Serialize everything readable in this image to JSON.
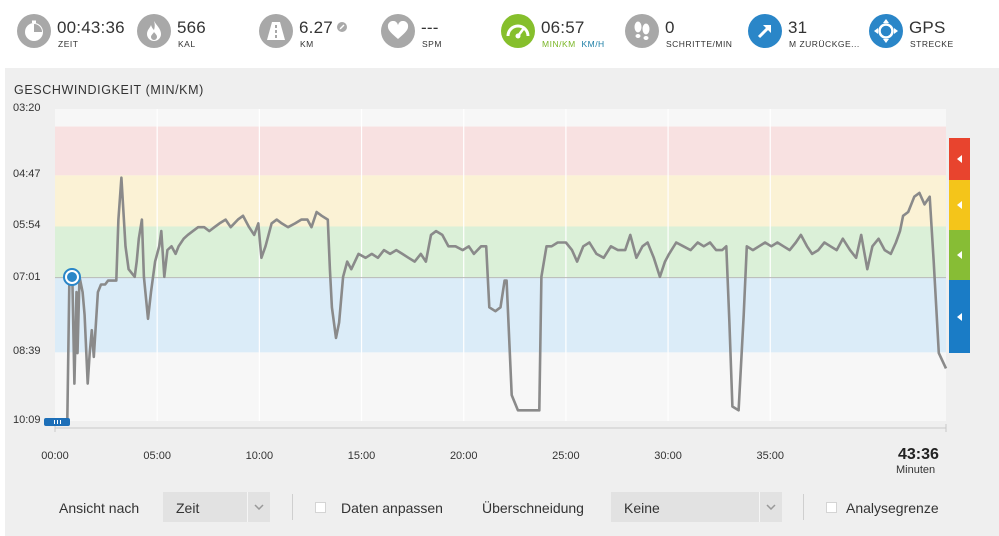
{
  "stats": [
    {
      "key": "time",
      "value": "00:43:36",
      "unit": "ZEIT",
      "icon": "stopwatch-icon",
      "color": "#a8a8a8"
    },
    {
      "key": "calories",
      "value": "566",
      "unit": "KAL",
      "icon": "flame-icon",
      "color": "#a8a8a8"
    },
    {
      "key": "distance",
      "value": "6.27",
      "unit": "KM",
      "icon": "road-icon",
      "color": "#a8a8a8"
    },
    {
      "key": "heart",
      "value": "---",
      "unit": "SPM",
      "icon": "heart-icon",
      "color": "#a8a8a8"
    },
    {
      "key": "pace",
      "value": "06:57",
      "unit_a": "MIN/KM",
      "unit_b": "KM/H",
      "icon": "speedometer-icon",
      "color": "#86bf2c"
    },
    {
      "key": "cadence",
      "value": "0",
      "unit": "SCHRITTE/MIN",
      "icon": "footsteps-icon",
      "color": "#a8a8a8"
    },
    {
      "key": "elevation",
      "value": "31",
      "unit": "M ZURÜCKGE...",
      "icon": "elevation-arrow-icon",
      "color": "#2a86c8"
    },
    {
      "key": "route",
      "value": "GPS",
      "unit": "STRECKE",
      "icon": "gps-compass-icon",
      "color": "#2a86c8"
    }
  ],
  "chart": {
    "title": "GESCHWINDIGKEIT  (MIN/KM)",
    "end_time": "43:36",
    "end_unit": "Minuten"
  },
  "chart_data": {
    "type": "line",
    "title": "GESCHWINDIGKEIT  (MIN/KM)",
    "xlabel": "Minuten",
    "ylabel": "MIN/KM",
    "x_unit": "minutes",
    "y_unit": "seconds per km (pace)",
    "x_ticks": [
      "00:00",
      "05:00",
      "10:00",
      "15:00",
      "20:00",
      "25:00",
      "30:00",
      "35:00"
    ],
    "y_ticks": [
      "03:20",
      "04:47",
      "05:54",
      "07:01",
      "08:39",
      "10:09"
    ],
    "xlim": [
      0,
      43.6
    ],
    "ylim": [
      200,
      609
    ],
    "y_inverted": true,
    "grid": true,
    "reference_pace": "07:01",
    "zones": [
      {
        "name": "red",
        "from": "03:43",
        "to": "04:47",
        "color": "#f8e1e1"
      },
      {
        "name": "yellow",
        "from": "04:47",
        "to": "05:54",
        "color": "#fbf2d5"
      },
      {
        "name": "green",
        "from": "05:54",
        "to": "07:01",
        "color": "#dbf0d8"
      },
      {
        "name": "blue",
        "from": "07:01",
        "to": "08:39",
        "color": "#dbecf8"
      }
    ],
    "zone_tab_colors": [
      "#e8442e",
      "#f4c51a",
      "#87bd35",
      "#1a7cc6"
    ],
    "series": [
      {
        "color": "#8a8a8a",
        "points": [
          [
            0,
            609
          ],
          [
            0.6,
            609
          ],
          [
            0.7,
            430
          ],
          [
            0.8,
            415
          ],
          [
            0.85,
            425
          ],
          [
            0.95,
            560
          ],
          [
            1.05,
            440
          ],
          [
            1.1,
            520
          ],
          [
            1.2,
            420
          ],
          [
            1.35,
            440
          ],
          [
            1.45,
            470
          ],
          [
            1.6,
            560
          ],
          [
            1.7,
            520
          ],
          [
            1.8,
            490
          ],
          [
            1.9,
            525
          ],
          [
            2.1,
            440
          ],
          [
            2.25,
            430
          ],
          [
            2.45,
            430
          ],
          [
            2.6,
            425
          ],
          [
            3.0,
            425
          ],
          [
            3.1,
            345
          ],
          [
            3.25,
            290
          ],
          [
            3.45,
            380
          ],
          [
            3.6,
            410
          ],
          [
            3.9,
            420
          ],
          [
            4.0,
            400
          ],
          [
            4.1,
            370
          ],
          [
            4.25,
            345
          ],
          [
            4.35,
            420
          ],
          [
            4.55,
            475
          ],
          [
            4.7,
            440
          ],
          [
            4.9,
            400
          ],
          [
            5.1,
            380
          ],
          [
            5.2,
            360
          ],
          [
            5.35,
            420
          ],
          [
            5.5,
            385
          ],
          [
            5.7,
            380
          ],
          [
            5.9,
            390
          ],
          [
            6.05,
            380
          ],
          [
            6.3,
            370
          ],
          [
            6.5,
            365
          ],
          [
            6.75,
            360
          ],
          [
            7.0,
            355
          ],
          [
            7.3,
            355
          ],
          [
            7.55,
            360
          ],
          [
            7.8,
            355
          ],
          [
            8.05,
            350
          ],
          [
            8.35,
            345
          ],
          [
            8.6,
            355
          ],
          [
            8.95,
            345
          ],
          [
            9.2,
            340
          ],
          [
            9.5,
            355
          ],
          [
            9.75,
            365
          ],
          [
            9.95,
            350
          ],
          [
            10.1,
            395
          ],
          [
            10.3,
            380
          ],
          [
            10.6,
            350
          ],
          [
            10.85,
            345
          ],
          [
            11.1,
            350
          ],
          [
            11.4,
            355
          ],
          [
            11.75,
            350
          ],
          [
            12.05,
            345
          ],
          [
            12.35,
            345
          ],
          [
            12.55,
            355
          ],
          [
            12.8,
            335
          ],
          [
            13.05,
            340
          ],
          [
            13.35,
            345
          ],
          [
            13.45,
            410
          ],
          [
            13.55,
            460
          ],
          [
            13.75,
            500
          ],
          [
            13.9,
            480
          ],
          [
            14.1,
            420
          ],
          [
            14.3,
            400
          ],
          [
            14.5,
            410
          ],
          [
            14.85,
            390
          ],
          [
            15.2,
            395
          ],
          [
            15.5,
            390
          ],
          [
            15.8,
            395
          ],
          [
            16.1,
            385
          ],
          [
            16.4,
            390
          ],
          [
            16.7,
            385
          ],
          [
            17.0,
            390
          ],
          [
            17.3,
            395
          ],
          [
            17.6,
            400
          ],
          [
            17.9,
            390
          ],
          [
            18.15,
            400
          ],
          [
            18.4,
            365
          ],
          [
            18.65,
            360
          ],
          [
            18.95,
            365
          ],
          [
            19.25,
            380
          ],
          [
            19.6,
            380
          ],
          [
            19.95,
            385
          ],
          [
            20.25,
            380
          ],
          [
            20.5,
            390
          ],
          [
            20.85,
            380
          ],
          [
            21.1,
            380
          ],
          [
            21.25,
            460
          ],
          [
            21.55,
            465
          ],
          [
            21.8,
            460
          ],
          [
            22.0,
            425
          ],
          [
            22.1,
            425
          ],
          [
            22.35,
            575
          ],
          [
            22.65,
            595
          ],
          [
            23.0,
            595
          ],
          [
            23.4,
            595
          ],
          [
            23.7,
            595
          ],
          [
            23.8,
            420
          ],
          [
            24.05,
            380
          ],
          [
            24.3,
            380
          ],
          [
            24.6,
            375
          ],
          [
            25.0,
            375
          ],
          [
            25.3,
            385
          ],
          [
            25.55,
            400
          ],
          [
            25.85,
            380
          ],
          [
            26.15,
            375
          ],
          [
            26.5,
            390
          ],
          [
            26.85,
            395
          ],
          [
            27.2,
            380
          ],
          [
            27.55,
            385
          ],
          [
            27.9,
            385
          ],
          [
            28.15,
            365
          ],
          [
            28.45,
            395
          ],
          [
            28.75,
            380
          ],
          [
            29.0,
            375
          ],
          [
            29.3,
            395
          ],
          [
            29.6,
            420
          ],
          [
            29.85,
            400
          ],
          [
            30.05,
            390
          ],
          [
            30.4,
            375
          ],
          [
            30.75,
            380
          ],
          [
            31.1,
            385
          ],
          [
            31.45,
            375
          ],
          [
            31.75,
            380
          ],
          [
            32.05,
            375
          ],
          [
            32.35,
            385
          ],
          [
            32.65,
            385
          ],
          [
            32.85,
            380
          ],
          [
            33.0,
            480
          ],
          [
            33.15,
            590
          ],
          [
            33.45,
            595
          ],
          [
            33.7,
            470
          ],
          [
            33.85,
            380
          ],
          [
            34.15,
            385
          ],
          [
            34.45,
            380
          ],
          [
            34.75,
            375
          ],
          [
            35.05,
            380
          ],
          [
            35.35,
            375
          ],
          [
            35.65,
            380
          ],
          [
            35.95,
            385
          ],
          [
            36.25,
            375
          ],
          [
            36.5,
            365
          ],
          [
            36.8,
            380
          ],
          [
            37.05,
            390
          ],
          [
            37.35,
            385
          ],
          [
            37.65,
            375
          ],
          [
            37.95,
            380
          ],
          [
            38.25,
            385
          ],
          [
            38.55,
            370
          ],
          [
            38.9,
            385
          ],
          [
            39.2,
            395
          ],
          [
            39.45,
            365
          ],
          [
            39.75,
            410
          ],
          [
            40.0,
            380
          ],
          [
            40.3,
            370
          ],
          [
            40.6,
            385
          ],
          [
            40.9,
            390
          ],
          [
            41.15,
            375
          ],
          [
            41.35,
            360
          ],
          [
            41.5,
            340
          ],
          [
            41.75,
            335
          ],
          [
            42.05,
            315
          ],
          [
            42.3,
            310
          ],
          [
            42.55,
            325
          ],
          [
            42.8,
            315
          ],
          [
            43.0,
            400
          ],
          [
            43.25,
            520
          ],
          [
            43.6,
            540
          ]
        ]
      }
    ]
  },
  "controls": {
    "view_label": "Ansicht nach",
    "view_value": "Zeit",
    "fit_label": "Daten anpassen",
    "overlap_label": "Überschneidung",
    "overlap_value": "Keine",
    "analysis_label": "Analysegrenze"
  }
}
